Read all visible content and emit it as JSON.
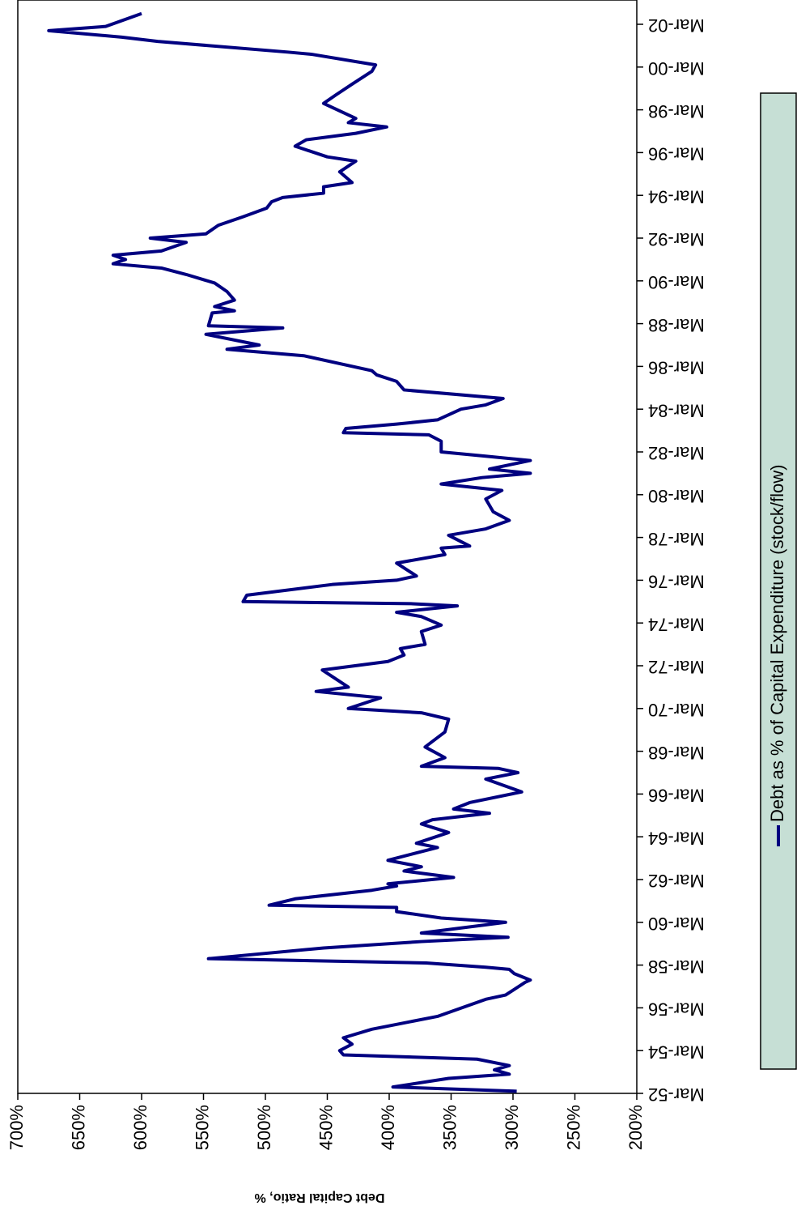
{
  "chart_data": {
    "type": "line",
    "y_label": "Debt Capital Ratio, %",
    "xlim": [
      1952,
      2002
    ],
    "xticks": [
      {
        "value": 1952,
        "label": "Mar-52"
      },
      {
        "value": 1954,
        "label": "Mar-54"
      },
      {
        "value": 1956,
        "label": "Mar-56"
      },
      {
        "value": 1958,
        "label": "Mar-58"
      },
      {
        "value": 1960,
        "label": "Mar-60"
      },
      {
        "value": 1962,
        "label": "Mar-62"
      },
      {
        "value": 1964,
        "label": "Mar-64"
      },
      {
        "value": 1966,
        "label": "Mar-66"
      },
      {
        "value": 1968,
        "label": "Mar-68"
      },
      {
        "value": 1970,
        "label": "Mar-70"
      },
      {
        "value": 1972,
        "label": "Mar-72"
      },
      {
        "value": 1974,
        "label": "Mar-74"
      },
      {
        "value": 1976,
        "label": "Mar-76"
      },
      {
        "value": 1978,
        "label": "Mar-78"
      },
      {
        "value": 1980,
        "label": "Mar-80"
      },
      {
        "value": 1982,
        "label": "Mar-82"
      },
      {
        "value": 1984,
        "label": "Mar-84"
      },
      {
        "value": 1986,
        "label": "Mar-86"
      },
      {
        "value": 1988,
        "label": "Mar-88"
      },
      {
        "value": 1990,
        "label": "Mar-90"
      },
      {
        "value": 1992,
        "label": "Mar-92"
      },
      {
        "value": 1994,
        "label": "Mar-94"
      },
      {
        "value": 1996,
        "label": "Mar-96"
      },
      {
        "value": 1998,
        "label": "Mar-98"
      },
      {
        "value": 2000,
        "label": "Mar-00"
      },
      {
        "value": 2002,
        "label": "Mar-02"
      }
    ],
    "ylim": [
      200,
      700
    ],
    "yticks": [
      {
        "value": 200,
        "label": "200%"
      },
      {
        "value": 250,
        "label": "250%"
      },
      {
        "value": 300,
        "label": "300%"
      },
      {
        "value": 350,
        "label": "350%"
      },
      {
        "value": 400,
        "label": "400%"
      },
      {
        "value": 450,
        "label": "450%"
      },
      {
        "value": 500,
        "label": "500%"
      },
      {
        "value": 550,
        "label": "550%"
      },
      {
        "value": 600,
        "label": "600%"
      },
      {
        "value": 650,
        "label": "650%"
      },
      {
        "value": 700,
        "label": "700%"
      }
    ],
    "x": [
      1952.1,
      1952.3,
      1952.7,
      1952.9,
      1953.1,
      1953.3,
      1953.6,
      1953.8,
      1954.0,
      1954.3,
      1954.6,
      1955.0,
      1955.6,
      1956.4,
      1956.6,
      1957.2,
      1957.3,
      1957.6,
      1957.8,
      1957.9,
      1958.1,
      1958.3,
      1958.8,
      1959.1,
      1959.3,
      1959.5,
      1960.0,
      1960.2,
      1960.5,
      1960.7,
      1960.8,
      1961.1,
      1961.5,
      1961.7,
      1961.8,
      1962.1,
      1962.4,
      1962.6,
      1962.9,
      1963.5,
      1963.7,
      1964.2,
      1964.6,
      1964.8,
      1965.1,
      1965.3,
      1965.6,
      1966.1,
      1966.7,
      1967.0,
      1967.2,
      1967.3,
      1967.7,
      1968.2,
      1968.9,
      1969.5,
      1969.8,
      1970.0,
      1970.5,
      1970.8,
      1971.0,
      1971.8,
      1972.2,
      1972.5,
      1972.8,
      1973.0,
      1973.6,
      1973.9,
      1974.3,
      1974.5,
      1974.8,
      1974.9,
      1975.0,
      1975.3,
      1975.8,
      1976.0,
      1976.2,
      1976.8,
      1977.2,
      1977.5,
      1977.6,
      1978.1,
      1978.4,
      1978.8,
      1979.2,
      1979.8,
      1980.2,
      1980.5,
      1980.8,
      1981.0,
      1981.2,
      1981.6,
      1981.8,
      1982.0,
      1982.5,
      1982.8,
      1982.9,
      1983.1,
      1983.3,
      1983.5,
      1984.0,
      1984.2,
      1984.5,
      1984.9,
      1985.3,
      1985.6,
      1985.8,
      1986.5,
      1986.8,
      1987.0,
      1987.5,
      1987.8,
      1987.9,
      1988.5,
      1988.6,
      1988.8,
      1989.1,
      1989.5,
      1989.9,
      1990.3,
      1990.6,
      1990.8,
      1991.0,
      1991.2,
      1991.4,
      1991.8,
      1992.0,
      1992.2,
      1992.6,
      1993.0,
      1993.4,
      1993.7,
      1993.9,
      1994.1,
      1994.4,
      1994.6,
      1995.1,
      1995.6,
      1995.8,
      1996.3,
      1996.6,
      1996.9,
      1997.2,
      1997.4,
      1997.6,
      1998.3,
      1998.7,
      1999.2,
      1999.8,
      2000.1,
      2000.6,
      2000.7,
      2001.2,
      2001.4,
      2001.7,
      2001.9,
      2002.5
    ],
    "series": [
      {
        "name": "Debt as % of Capital Expenditure (stock/flow)",
        "color": "#000080",
        "values": [
          297,
          397,
          352,
          303,
          315,
          303,
          329,
          437,
          440,
          430,
          437,
          414,
          361,
          322,
          306,
          290,
          286,
          299,
          303,
          322,
          370,
          546,
          453,
          374,
          304,
          374,
          306,
          358,
          394,
          394,
          497,
          476,
          414,
          394,
          401,
          348,
          388,
          374,
          401,
          361,
          378,
          352,
          374,
          365,
          319,
          348,
          335,
          293,
          322,
          296,
          312,
          374,
          355,
          371,
          355,
          352,
          374,
          433,
          407,
          459,
          433,
          454,
          401,
          388,
          391,
          371,
          374,
          358,
          374,
          394,
          345,
          381,
          518,
          515,
          446,
          394,
          378,
          394,
          355,
          358,
          335,
          352,
          322,
          303,
          316,
          322,
          309,
          358,
          325,
          286,
          319,
          286,
          322,
          358,
          358,
          368,
          437,
          435,
          394,
          361,
          342,
          322,
          308,
          388,
          394,
          410,
          414,
          469,
          531,
          505,
          548,
          486,
          546,
          543,
          525,
          541,
          525,
          531,
          541,
          564,
          584,
          623,
          613,
          623,
          584,
          564,
          593,
          548,
          538,
          518,
          499,
          495,
          486,
          453,
          453,
          430,
          440,
          427,
          450,
          476,
          467,
          427,
          402,
          433,
          427,
          453,
          443,
          430,
          414,
          411,
          463,
          482,
          587,
          616,
          675,
          629,
          600
        ]
      }
    ]
  }
}
